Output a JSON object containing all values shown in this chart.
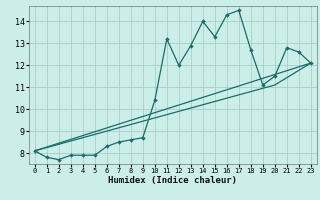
{
  "xlabel": "Humidex (Indice chaleur)",
  "bg_color": "#cceee8",
  "grid_color": "#aacccc",
  "line_color": "#1a6b6b",
  "xlim": [
    -0.5,
    23.5
  ],
  "ylim": [
    7.5,
    14.7
  ],
  "xtick_labels": [
    "0",
    "1",
    "2",
    "3",
    "4",
    "5",
    "6",
    "7",
    "8",
    "9",
    "10",
    "11",
    "12",
    "13",
    "14",
    "15",
    "16",
    "17",
    "18",
    "19",
    "20",
    "21",
    "22",
    "23"
  ],
  "xtick_vals": [
    0,
    1,
    2,
    3,
    4,
    5,
    6,
    7,
    8,
    9,
    10,
    11,
    12,
    13,
    14,
    15,
    16,
    17,
    18,
    19,
    20,
    21,
    22,
    23
  ],
  "ytick_vals": [
    8,
    9,
    10,
    11,
    12,
    13,
    14
  ],
  "scatter_x": [
    0,
    1,
    2,
    3,
    4,
    5,
    6,
    7,
    8,
    9,
    10,
    11,
    12,
    13,
    14,
    15,
    16,
    17,
    18,
    19,
    20,
    21,
    22,
    23
  ],
  "scatter_y": [
    8.1,
    7.8,
    7.7,
    7.9,
    7.9,
    7.9,
    8.3,
    8.5,
    8.6,
    8.7,
    10.4,
    13.2,
    12.0,
    12.9,
    14.0,
    13.3,
    14.3,
    14.5,
    12.7,
    11.1,
    11.5,
    12.8,
    12.6,
    12.1
  ],
  "trend1_x": [
    0,
    23
  ],
  "trend1_y": [
    8.1,
    12.1
  ],
  "trend2_x": [
    0,
    20,
    23
  ],
  "trend2_y": [
    8.1,
    11.1,
    12.1
  ]
}
